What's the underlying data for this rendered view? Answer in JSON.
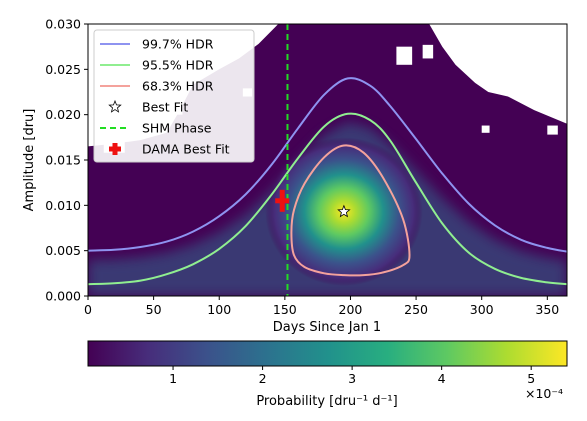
{
  "chart_data": {
    "type": "heatmap",
    "title": "",
    "xlabel": "Days Since Jan 1",
    "ylabel": "Amplitude [dru]",
    "xlim": [
      0,
      365
    ],
    "ylim": [
      0.0,
      0.03
    ],
    "xticks": [
      "0",
      "50",
      "100",
      "150",
      "200",
      "250",
      "300",
      "350"
    ],
    "yticks": [
      "0.000",
      "0.005",
      "0.010",
      "0.015",
      "0.020",
      "0.025",
      "0.030"
    ],
    "grid": false,
    "legend_placement": "top-left",
    "colormap": "viridis",
    "colorbar": {
      "label": "Probability [dru⁻¹ d⁻¹]",
      "ticks": [
        "1",
        "2",
        "3",
        "4",
        "5"
      ],
      "tick_values": [
        1,
        2,
        3,
        4,
        5
      ],
      "range": [
        0.05,
        5.4
      ],
      "scale_label": "×10⁻⁴"
    },
    "series": [
      {
        "name": "99.7% HDR",
        "color": "#8e93f0",
        "x": [
          0,
          20,
          40,
          60,
          80,
          100,
          120,
          140,
          160,
          180,
          198,
          215,
          230,
          250,
          270,
          290,
          310,
          330,
          350,
          365
        ],
        "y": [
          0.005,
          0.0051,
          0.0054,
          0.006,
          0.0071,
          0.0088,
          0.0112,
          0.0145,
          0.0185,
          0.0222,
          0.024,
          0.0232,
          0.021,
          0.0173,
          0.0135,
          0.0102,
          0.0078,
          0.0062,
          0.0053,
          0.0049
        ]
      },
      {
        "name": "95.5% HDR",
        "color": "#90ee90",
        "x": [
          0,
          20,
          40,
          60,
          80,
          100,
          120,
          140,
          160,
          180,
          198,
          215,
          230,
          250,
          270,
          290,
          310,
          330,
          350,
          365
        ],
        "y": [
          0.0013,
          0.0014,
          0.0017,
          0.0024,
          0.0035,
          0.0052,
          0.0077,
          0.0112,
          0.0152,
          0.0187,
          0.0201,
          0.0194,
          0.0172,
          0.0125,
          0.008,
          0.0048,
          0.003,
          0.002,
          0.0015,
          0.0013
        ]
      },
      {
        "name": "68.3% HDR",
        "color": "#f4a29c",
        "x": [
          165,
          180,
          195,
          210,
          225,
          240,
          245,
          240,
          225,
          210,
          195,
          180,
          165,
          157,
          155,
          157,
          165
        ],
        "y": [
          0.0124,
          0.0153,
          0.0166,
          0.0158,
          0.013,
          0.0085,
          0.0045,
          0.0034,
          0.0026,
          0.0023,
          0.0023,
          0.0025,
          0.0032,
          0.0045,
          0.007,
          0.0095,
          0.0124
        ]
      }
    ],
    "best_fit": {
      "name": "Best Fit",
      "x": 195,
      "y": 0.0093
    },
    "shm_phase": {
      "name": "SHM Phase",
      "x": 152,
      "color": "#22dd22"
    },
    "dama_best_fit": {
      "name": "DAMA Best Fit",
      "x": 148,
      "y": 0.0105,
      "color": "#ee1111"
    },
    "legend": [
      "99.7% HDR",
      "95.5% HDR",
      "68.3% HDR",
      "Best Fit",
      "SHM Phase",
      "DAMA Best Fit"
    ]
  }
}
